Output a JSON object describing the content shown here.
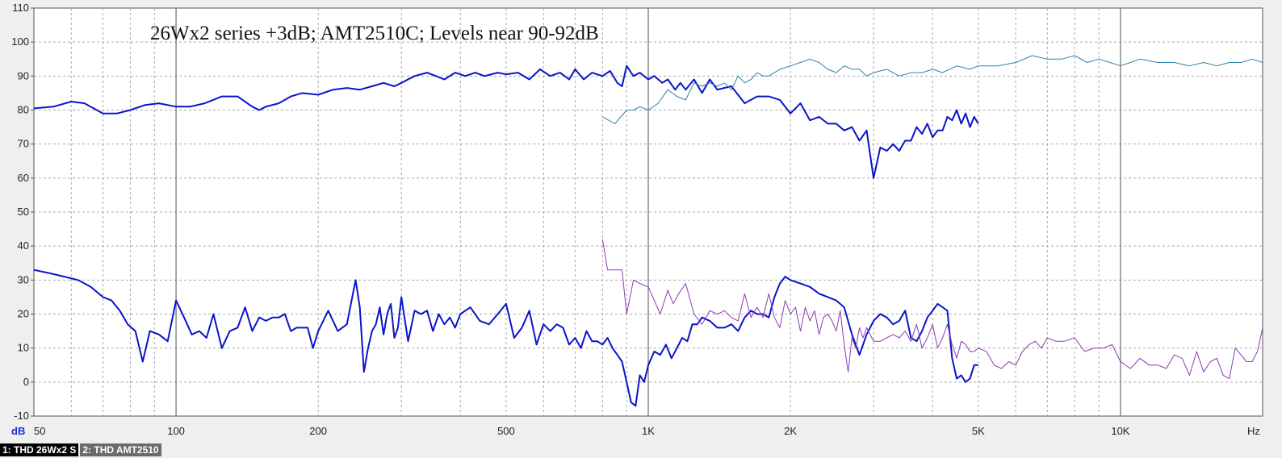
{
  "chart_data": {
    "type": "line",
    "title": "26Wx2 series +3dB; AMT2510C; Levels near 90-92dB",
    "ylabel": "dB",
    "xlabel_unit": "Hz",
    "x_scale": "log",
    "xlim": [
      50,
      20000
    ],
    "ylim": [
      -10,
      110
    ],
    "y_ticks": [
      110,
      100,
      90,
      80,
      70,
      60,
      50,
      40,
      30,
      20,
      10,
      0,
      -10
    ],
    "x_tick_labels": [
      {
        "value": 50,
        "label": "50"
      },
      {
        "value": 100,
        "label": "100"
      },
      {
        "value": 200,
        "label": "200"
      },
      {
        "value": 500,
        "label": "500"
      },
      {
        "value": 1000,
        "label": "1K"
      },
      {
        "value": 2000,
        "label": "2K"
      },
      {
        "value": 5000,
        "label": "5K"
      },
      {
        "value": 10000,
        "label": "10K"
      }
    ],
    "grid": true,
    "series": [
      {
        "role": "response",
        "color": "#0a14c8",
        "width": 2,
        "x": [
          50,
          55,
          60,
          64,
          70,
          75,
          80,
          86,
          92,
          100,
          107,
          115,
          125,
          135,
          145,
          150,
          155,
          165,
          175,
          185,
          200,
          215,
          230,
          245,
          260,
          275,
          290,
          300,
          320,
          340,
          355,
          370,
          390,
          410,
          430,
          450,
          480,
          500,
          530,
          560,
          590,
          620,
          650,
          680,
          700,
          730,
          760,
          800,
          830,
          860,
          880,
          900,
          930,
          960,
          1000,
          1030,
          1070,
          1100,
          1140,
          1170,
          1200,
          1250,
          1300,
          1350,
          1400,
          1500,
          1600,
          1700,
          1800,
          1900,
          2000,
          2100,
          2200,
          2300,
          2400,
          2500,
          2600,
          2700,
          2800,
          2900,
          3000,
          3100,
          3200,
          3300,
          3400,
          3500,
          3600,
          3700,
          3800,
          3900,
          4000,
          4100,
          4200,
          4300,
          4400,
          4500,
          4600,
          4700,
          4800,
          4900,
          5000
        ],
        "y": [
          80.5,
          81,
          82.5,
          82,
          79,
          79,
          80,
          81.5,
          82,
          81,
          81,
          82,
          84,
          84,
          81,
          80,
          81,
          82,
          84,
          85,
          84.5,
          86,
          86.5,
          86,
          87,
          88,
          87,
          88,
          90,
          91,
          90,
          89,
          91,
          90,
          91,
          90,
          91,
          90.5,
          91,
          89,
          92,
          90,
          91,
          89,
          92,
          89,
          91,
          90,
          91.5,
          88,
          87,
          93,
          90,
          91,
          89,
          90,
          88,
          89,
          86,
          88,
          86,
          89,
          85,
          89,
          86,
          87,
          82,
          84,
          84,
          83,
          79,
          82,
          77,
          78,
          76,
          76,
          74,
          75,
          71,
          74,
          60,
          69,
          68,
          70,
          68,
          71,
          71,
          75,
          73,
          76,
          72,
          74,
          74,
          78,
          77,
          80,
          76,
          79,
          75,
          78,
          76
        ]
      },
      {
        "role": "response",
        "color": "#2f82a8",
        "width": 1,
        "x": [
          800,
          850,
          900,
          930,
          960,
          1000,
          1050,
          1100,
          1150,
          1200,
          1250,
          1300,
          1350,
          1400,
          1450,
          1500,
          1550,
          1600,
          1650,
          1700,
          1750,
          1800,
          1900,
          2000,
          2100,
          2200,
          2300,
          2400,
          2500,
          2600,
          2700,
          2800,
          2900,
          3000,
          3200,
          3400,
          3600,
          3800,
          4000,
          4200,
          4500,
          4800,
          5000,
          5500,
          6000,
          6500,
          7000,
          7500,
          8000,
          8500,
          9000,
          9500,
          10000,
          11000,
          12000,
          13000,
          14000,
          15000,
          16000,
          17000,
          18000,
          19000,
          20000
        ],
        "y": [
          78,
          76,
          80,
          80,
          81,
          80,
          82,
          86,
          84,
          83,
          88,
          87,
          88,
          87,
          88,
          86,
          90,
          88,
          89,
          91,
          90,
          90,
          92,
          93,
          94,
          95,
          94,
          92,
          91,
          93,
          92,
          92,
          90,
          91,
          92,
          90,
          91,
          91,
          92,
          91,
          93,
          92,
          93,
          93,
          94,
          96,
          95,
          95,
          96,
          94,
          95,
          94,
          93,
          95,
          94,
          94,
          93,
          94,
          93,
          94,
          94,
          95,
          94
        ]
      },
      {
        "role": "thd",
        "color": "#0a14c8",
        "width": 2,
        "x": [
          50,
          54,
          58,
          62,
          66,
          70,
          73,
          76,
          79,
          82,
          85,
          88,
          92,
          96,
          100,
          104,
          108,
          112,
          116,
          120,
          125,
          130,
          135,
          140,
          145,
          150,
          155,
          160,
          165,
          170,
          175,
          180,
          185,
          190,
          195,
          200,
          210,
          220,
          230,
          240,
          245,
          250,
          255,
          260,
          265,
          270,
          275,
          280,
          285,
          290,
          295,
          300,
          310,
          320,
          330,
          340,
          350,
          360,
          370,
          380,
          390,
          400,
          420,
          440,
          460,
          480,
          500,
          520,
          540,
          560,
          580,
          600,
          620,
          640,
          660,
          680,
          700,
          720,
          740,
          760,
          780,
          800,
          820,
          840,
          860,
          880,
          900,
          920,
          940,
          960,
          980,
          1000,
          1030,
          1060,
          1090,
          1120,
          1150,
          1180,
          1210,
          1240,
          1270,
          1300,
          1350,
          1400,
          1450,
          1500,
          1550,
          1600,
          1650,
          1700,
          1750,
          1800,
          1850,
          1900,
          1950,
          2000,
          2100,
          2200,
          2300,
          2400,
          2500,
          2600,
          2700,
          2800,
          2900,
          3000,
          3100,
          3200,
          3300,
          3400,
          3500,
          3600,
          3700,
          3800,
          3900,
          4000,
          4100,
          4200,
          4300,
          4400,
          4500,
          4600,
          4700,
          4800,
          4900,
          5000
        ],
        "y": [
          33,
          32,
          31,
          30,
          28,
          25,
          24,
          21,
          17,
          15,
          6,
          15,
          14,
          12,
          24,
          19,
          14,
          15,
          13,
          20,
          10,
          15,
          16,
          22,
          15,
          19,
          18,
          19,
          19,
          20,
          15,
          16,
          16,
          16,
          10,
          15,
          21,
          15,
          17,
          30,
          22,
          3,
          10,
          15,
          17,
          22,
          14,
          20,
          23,
          13,
          16,
          25,
          12,
          21,
          20,
          21,
          15,
          20,
          17,
          19,
          16,
          20,
          22,
          18,
          17,
          20,
          23,
          13,
          16,
          21,
          11,
          17,
          15,
          17,
          16,
          11,
          13,
          10,
          15,
          12,
          12,
          11,
          13,
          10,
          8,
          6,
          0,
          -6,
          -7,
          2,
          0,
          5,
          9,
          8,
          11,
          7,
          10,
          13,
          12,
          17,
          17,
          19,
          18,
          16,
          16,
          17,
          15,
          19,
          21,
          20,
          20,
          19,
          25,
          29,
          31,
          30,
          29,
          28,
          26,
          25,
          24,
          22,
          14,
          8,
          14,
          18,
          20,
          19,
          17,
          18,
          21,
          13,
          12,
          15,
          19,
          21,
          23,
          22,
          21,
          7,
          1,
          2,
          0,
          1,
          5,
          5
        ]
      },
      {
        "role": "thd",
        "color": "#8a3bb0",
        "width": 1,
        "x": [
          800,
          820,
          840,
          860,
          880,
          900,
          930,
          960,
          1000,
          1030,
          1060,
          1100,
          1130,
          1160,
          1200,
          1250,
          1300,
          1350,
          1400,
          1450,
          1500,
          1550,
          1600,
          1650,
          1700,
          1750,
          1800,
          1850,
          1900,
          1950,
          2000,
          2050,
          2100,
          2150,
          2200,
          2250,
          2300,
          2350,
          2400,
          2450,
          2500,
          2550,
          2600,
          2650,
          2700,
          2750,
          2800,
          2850,
          2900,
          2950,
          3000,
          3100,
          3200,
          3300,
          3400,
          3500,
          3600,
          3700,
          3800,
          3900,
          4000,
          4100,
          4200,
          4300,
          4400,
          4500,
          4600,
          4700,
          4800,
          4900,
          5000,
          5200,
          5400,
          5600,
          5800,
          6000,
          6200,
          6400,
          6600,
          6800,
          7000,
          7300,
          7600,
          8000,
          8400,
          8800,
          9200,
          9600,
          10000,
          10500,
          11000,
          11500,
          12000,
          12500,
          13000,
          13500,
          14000,
          14500,
          15000,
          15500,
          16000,
          16500,
          17000,
          17500,
          18000,
          18500,
          19000,
          19500,
          20000
        ],
        "y": [
          42,
          33,
          33,
          33,
          33,
          20,
          30,
          29,
          28,
          24,
          20,
          27,
          23,
          26,
          29,
          20,
          17,
          21,
          20,
          21,
          19,
          18,
          26,
          19,
          22,
          19,
          26,
          19,
          16,
          24,
          20,
          22,
          15,
          22,
          18,
          21,
          14,
          19,
          20,
          18,
          15,
          21,
          11,
          3,
          13,
          10,
          16,
          13,
          16,
          14,
          12,
          12,
          13,
          14,
          13,
          15,
          12,
          17,
          10,
          13,
          17,
          10,
          13,
          17,
          11,
          7,
          12,
          11,
          9,
          9,
          10,
          9,
          5,
          4,
          6,
          5,
          9,
          11,
          12,
          10,
          13,
          12,
          12,
          13,
          9,
          10,
          10,
          11,
          6,
          4,
          7,
          5,
          5,
          4,
          8,
          7,
          2,
          9,
          3,
          6,
          7,
          2,
          1,
          10,
          8,
          6,
          6,
          9,
          16
        ]
      }
    ]
  },
  "tabs": {
    "tab1": "1: THD 26Wx2 S",
    "tab2": "2: THD AMT2510"
  },
  "colors": {
    "plot_background": "#ffffff",
    "window_background": "#efefef",
    "grid": "#a8a8a8"
  }
}
